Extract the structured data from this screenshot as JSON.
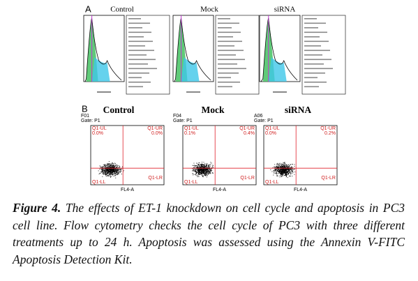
{
  "panel_a": {
    "label": "A",
    "plots": [
      {
        "title": "Control"
      },
      {
        "title": "Mock"
      },
      {
        "title": "siRNA"
      }
    ]
  },
  "panel_b": {
    "label": "B",
    "plots": [
      {
        "title": "Control",
        "sample": "F01",
        "gate": "Gate: P1",
        "ul": "Q1-UL",
        "ul_value": "0.0%",
        "ur": "Q1-UR",
        "ur_value": "0.0%",
        "ll": "Q1-LL",
        "lr": "Q1-LR",
        "x_axis_label": "FL4-A"
      },
      {
        "title": "Mock",
        "sample": "F04",
        "gate": "Gate: P1",
        "ul": "Q1-UL",
        "ul_value": "0.1%",
        "ur": "Q1-UR",
        "ur_value": "0.4%",
        "ll": "Q1-LL",
        "lr": "Q1-LR",
        "x_axis_label": "FL4-A"
      },
      {
        "title": "siRNA",
        "sample": "A06",
        "gate": "Gate: P1",
        "ul": "Q1-UL",
        "ul_value": "0.0%",
        "ur": "Q1-UR",
        "ur_value": "0.2%",
        "ll": "Q1-LL",
        "lr": "Q1-LR",
        "x_axis_label": "FL4-A"
      }
    ]
  },
  "caption": {
    "label": "Figure 4.",
    "text": "The effects of ET-1 knockdown on cell cycle and apoptosis in PC3 cell line. Flow cytometry checks the cell cycle of PC3 with three different treatments up to 24 h. Apoptosis was assessed using the Annexin V-FITC Apoptosis Detection Kit."
  }
}
